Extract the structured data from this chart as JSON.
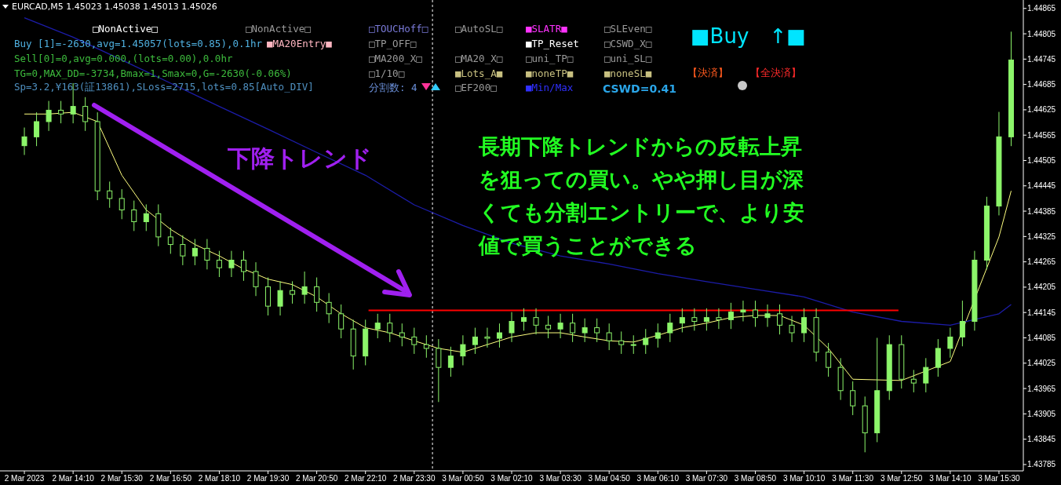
{
  "chart_data": {
    "type": "candlestick",
    "title": "EURCAD,M5  1.45023 1.45038 1.45013 1.45026",
    "color": "#8cf56a",
    "x": [
      "2023-03-02T12:50",
      "2023-03-02T13:10",
      "2023-03-02T13:30",
      "2023-03-02T13:50",
      "2023-03-02T14:10",
      "2023-03-02T14:30",
      "2023-03-02T14:50",
      "2023-03-02T15:10",
      "2023-03-02T15:30",
      "2023-03-02T15:50",
      "2023-03-02T16:10",
      "2023-03-02T16:30",
      "2023-03-02T16:50",
      "2023-03-02T17:10",
      "2023-03-02T17:30",
      "2023-03-02T17:50",
      "2023-03-02T18:10",
      "2023-03-02T18:30",
      "2023-03-02T18:50",
      "2023-03-02T19:10",
      "2023-03-02T19:30",
      "2023-03-02T19:50",
      "2023-03-02T20:10",
      "2023-03-02T20:30",
      "2023-03-02T20:50",
      "2023-03-02T21:10",
      "2023-03-02T21:30",
      "2023-03-02T21:50",
      "2023-03-02T22:10",
      "2023-03-02T22:30",
      "2023-03-02T22:50",
      "2023-03-02T23:10",
      "2023-03-02T23:30",
      "2023-03-02T23:50",
      "2023-03-03T00:10",
      "2023-03-03T00:30",
      "2023-03-03T00:50",
      "2023-03-03T01:10",
      "2023-03-03T01:30",
      "2023-03-03T01:50",
      "2023-03-03T02:10",
      "2023-03-03T02:30",
      "2023-03-03T02:50",
      "2023-03-03T03:10",
      "2023-03-03T03:30",
      "2023-03-03T03:50",
      "2023-03-03T04:10",
      "2023-03-03T04:30",
      "2023-03-03T04:50",
      "2023-03-03T05:10",
      "2023-03-03T05:30",
      "2023-03-03T05:50",
      "2023-03-03T06:10",
      "2023-03-03T06:30",
      "2023-03-03T06:50",
      "2023-03-03T07:10",
      "2023-03-03T07:30",
      "2023-03-03T07:50",
      "2023-03-03T08:10",
      "2023-03-03T08:30",
      "2023-03-03T08:50",
      "2023-03-03T09:10",
      "2023-03-03T09:30",
      "2023-03-03T09:50",
      "2023-03-03T10:10",
      "2023-03-03T10:30",
      "2023-03-03T10:50",
      "2023-03-03T11:10",
      "2023-03-03T11:30",
      "2023-03-03T11:50",
      "2023-03-03T12:10",
      "2023-03-03T12:30",
      "2023-03-03T12:50",
      "2023-03-03T13:10",
      "2023-03-03T13:30",
      "2023-03-03T13:50",
      "2023-03-03T14:10",
      "2023-03-03T14:30",
      "2023-03-03T14:50",
      "2023-03-03T15:10",
      "2023-03-03T15:30",
      "2023-03-03T15:50"
    ],
    "ohlc": [
      [
        1.4454,
        1.44583,
        1.44518,
        1.44561
      ],
      [
        1.44561,
        1.44619,
        1.44539,
        1.44597
      ],
      [
        1.44597,
        1.44646,
        1.44575,
        1.44624
      ],
      [
        1.44624,
        1.44646,
        1.44593,
        1.44615
      ],
      [
        1.44615,
        1.44688,
        1.44593,
        1.44633
      ],
      [
        1.44633,
        1.44655,
        1.44575,
        1.44597
      ],
      [
        1.44597,
        1.44619,
        1.44411,
        1.44433
      ],
      [
        1.44433,
        1.44455,
        1.44393,
        1.44415
      ],
      [
        1.44415,
        1.44437,
        1.44366,
        1.44388
      ],
      [
        1.44388,
        1.4441,
        1.44338,
        1.4436
      ],
      [
        1.4436,
        1.44401,
        1.44338,
        1.44379
      ],
      [
        1.44379,
        1.44401,
        1.44302,
        1.44324
      ],
      [
        1.44324,
        1.44346,
        1.44284,
        1.44306
      ],
      [
        1.44306,
        1.44328,
        1.44257,
        1.44279
      ],
      [
        1.44279,
        1.44319,
        1.44257,
        1.44297
      ],
      [
        1.44297,
        1.44319,
        1.44247,
        1.44269
      ],
      [
        1.44269,
        1.44291,
        1.44229,
        1.44251
      ],
      [
        1.44251,
        1.44291,
        1.44229,
        1.44269
      ],
      [
        1.44269,
        1.44291,
        1.4422,
        1.44242
      ],
      [
        1.44242,
        1.44264,
        1.44184,
        1.44206
      ],
      [
        1.44206,
        1.44228,
        1.44138,
        1.4416
      ],
      [
        1.4416,
        1.44219,
        1.44138,
        1.44197
      ],
      [
        1.44197,
        1.44219,
        1.44166,
        1.44188
      ],
      [
        1.44188,
        1.44242,
        1.44166,
        1.44206
      ],
      [
        1.44206,
        1.44228,
        1.44147,
        1.44169
      ],
      [
        1.44169,
        1.44191,
        1.4412,
        1.44142
      ],
      [
        1.44142,
        1.44164,
        1.44084,
        1.44106
      ],
      [
        1.44106,
        1.44128,
        1.4401,
        1.44042
      ],
      [
        1.44042,
        1.44128,
        1.4402,
        1.44106
      ],
      [
        1.44106,
        1.44142,
        1.44084,
        1.4412
      ],
      [
        1.4412,
        1.44142,
        1.44075,
        1.44097
      ],
      [
        1.44097,
        1.44119,
        1.44065,
        1.44087
      ],
      [
        1.44087,
        1.44109,
        1.44047,
        1.44069
      ],
      [
        1.44069,
        1.44091,
        1.44038,
        1.4406
      ],
      [
        1.4406,
        1.44082,
        1.43933,
        1.44015
      ],
      [
        1.44015,
        1.44064,
        1.43993,
        1.44042
      ],
      [
        1.44042,
        1.44091,
        1.4402,
        1.44069
      ],
      [
        1.44069,
        1.44109,
        1.44047,
        1.44087
      ],
      [
        1.44087,
        1.44109,
        1.44062,
        1.44084
      ],
      [
        1.44084,
        1.44119,
        1.44062,
        1.44097
      ],
      [
        1.44097,
        1.44146,
        1.44075,
        1.44124
      ],
      [
        1.44124,
        1.44155,
        1.44102,
        1.44133
      ],
      [
        1.44133,
        1.44155,
        1.44093,
        1.44115
      ],
      [
        1.44115,
        1.44137,
        1.44084,
        1.44106
      ],
      [
        1.44106,
        1.44142,
        1.44084,
        1.4412
      ],
      [
        1.4412,
        1.44142,
        1.44075,
        1.44097
      ],
      [
        1.44097,
        1.44131,
        1.44075,
        1.44109
      ],
      [
        1.44109,
        1.44131,
        1.44075,
        1.44097
      ],
      [
        1.44097,
        1.44119,
        1.44056,
        1.44078
      ],
      [
        1.44078,
        1.441,
        1.44047,
        1.44069
      ],
      [
        1.44069,
        1.44091,
        1.44047,
        1.44069
      ],
      [
        1.44069,
        1.44106,
        1.44047,
        1.44084
      ],
      [
        1.44084,
        1.44119,
        1.44062,
        1.44097
      ],
      [
        1.44097,
        1.44142,
        1.44075,
        1.4412
      ],
      [
        1.4412,
        1.44155,
        1.44098,
        1.44133
      ],
      [
        1.44133,
        1.44155,
        1.44102,
        1.44124
      ],
      [
        1.44124,
        1.44155,
        1.44102,
        1.44133
      ],
      [
        1.44133,
        1.44155,
        1.44106,
        1.44128
      ],
      [
        1.44128,
        1.44168,
        1.44106,
        1.44146
      ],
      [
        1.44146,
        1.44173,
        1.44124,
        1.44151
      ],
      [
        1.44151,
        1.44173,
        1.44111,
        1.44133
      ],
      [
        1.44133,
        1.44164,
        1.44111,
        1.44142
      ],
      [
        1.44142,
        1.44164,
        1.44093,
        1.44115
      ],
      [
        1.44115,
        1.44137,
        1.44075,
        1.44097
      ],
      [
        1.44097,
        1.44155,
        1.44075,
        1.44133
      ],
      [
        1.44133,
        1.44155,
        1.44029,
        1.44051
      ],
      [
        1.44051,
        1.44073,
        1.43993,
        1.44015
      ],
      [
        1.44015,
        1.44037,
        1.43938,
        1.4396
      ],
      [
        1.4396,
        1.43982,
        1.43902,
        1.43924
      ],
      [
        1.43924,
        1.43946,
        1.43814,
        1.4386
      ],
      [
        1.4386,
        1.44085,
        1.43838,
        1.4396
      ],
      [
        1.4396,
        1.44091,
        1.43938,
        1.44069
      ],
      [
        1.44069,
        1.44091,
        1.43965,
        1.43987
      ],
      [
        1.43987,
        1.44009,
        1.43956,
        1.43978
      ],
      [
        1.43978,
        1.44037,
        1.43956,
        1.44015
      ],
      [
        1.44015,
        1.44082,
        1.43993,
        1.4406
      ],
      [
        1.4406,
        1.44109,
        1.44038,
        1.44087
      ],
      [
        1.44087,
        1.44173,
        1.44065,
        1.44124
      ],
      [
        1.44124,
        1.44291,
        1.44102,
        1.44269
      ],
      [
        1.44269,
        1.44419,
        1.44247,
        1.44397
      ],
      [
        1.44397,
        1.4462,
        1.44375,
        1.44561
      ],
      [
        1.44561,
        1.4481,
        1.44539,
        1.44743
      ]
    ],
    "series": [
      {
        "type": "line",
        "color": "#ffff80",
        "x": [
          "2023-03-02T12:50",
          "2023-03-02T13:30",
          "2023-03-02T14:10",
          "2023-03-02T14:50",
          "2023-03-02T15:30",
          "2023-03-02T16:10",
          "2023-03-02T16:50",
          "2023-03-02T17:30",
          "2023-03-02T18:10",
          "2023-03-02T18:50",
          "2023-03-02T19:30",
          "2023-03-02T20:10",
          "2023-03-02T20:50",
          "2023-03-02T21:30",
          "2023-03-02T22:10",
          "2023-03-02T22:50",
          "2023-03-02T23:30",
          "2023-03-03T00:10",
          "2023-03-03T00:50",
          "2023-03-03T01:30",
          "2023-03-03T02:10",
          "2023-03-03T02:50",
          "2023-03-03T03:30",
          "2023-03-03T04:10",
          "2023-03-03T04:50",
          "2023-03-03T05:30",
          "2023-03-03T06:10",
          "2023-03-03T06:50",
          "2023-03-03T07:30",
          "2023-03-03T08:10",
          "2023-03-03T08:50",
          "2023-03-03T09:30",
          "2023-03-03T10:10",
          "2023-03-03T10:50",
          "2023-03-03T11:30",
          "2023-03-03T12:50",
          "2023-03-03T14:10",
          "2023-03-03T15:30",
          "2023-03-03T15:50"
        ],
        "values": [
          1.44615,
          1.44615,
          1.44619,
          1.44597,
          1.4447,
          1.44388,
          1.44342,
          1.44306,
          1.44279,
          1.44248,
          1.44224,
          1.44211,
          1.44182,
          1.44142,
          1.44109,
          1.44097,
          1.44078,
          1.4406,
          1.44051,
          1.44069,
          1.44087,
          1.44097,
          1.44097,
          1.44087,
          1.44078,
          1.44075,
          1.44091,
          1.44109,
          1.4412,
          1.44133,
          1.44138,
          1.44138,
          1.44115,
          1.4406,
          1.43987,
          1.43984,
          1.44029,
          1.44324,
          1.44433
        ]
      },
      {
        "type": "line",
        "color": "#1c1ca8",
        "x": [
          "2023-03-02T12:50",
          "2023-03-02T14:10",
          "2023-03-02T15:30",
          "2023-03-02T16:50",
          "2023-03-02T18:10",
          "2023-03-02T19:30",
          "2023-03-02T20:50",
          "2023-03-02T22:10",
          "2023-03-02T23:30",
          "2023-03-03T00:50",
          "2023-03-03T02:10",
          "2023-03-03T03:30",
          "2023-03-03T04:50",
          "2023-03-03T06:10",
          "2023-03-03T07:30",
          "2023-03-03T08:50",
          "2023-03-03T10:10",
          "2023-03-03T11:30",
          "2023-03-03T12:50",
          "2023-03-03T14:10",
          "2023-03-03T15:30",
          "2023-03-03T15:50"
        ],
        "values": [
          1.44843,
          1.44797,
          1.44743,
          1.44688,
          1.44633,
          1.44579,
          1.44524,
          1.4447,
          1.444,
          1.44351,
          1.44309,
          1.44279,
          1.4426,
          1.44237,
          1.44218,
          1.442,
          1.44182,
          1.44146,
          1.44124,
          1.44115,
          1.44142,
          1.44164
        ]
      },
      {
        "type": "line",
        "color": "#ff0000",
        "x": [
          "2023-03-02T22:15",
          "2023-03-03T12:45"
        ],
        "values": [
          1.4415,
          1.4415
        ]
      }
    ],
    "ref_lines": [
      {
        "axis": "x",
        "value": "2023-03-03T00:00",
        "color": "#ffffff",
        "line_style": "dashed"
      }
    ],
    "xlim": [
      "2023-03-02T12:10",
      "2023-03-03T16:10"
    ],
    "xticks": [
      {
        "value": "2023-03-02T12:50",
        "label": "2 Mar 2023"
      },
      {
        "value": "2023-03-02T14:10",
        "label": "2 Mar 14:10"
      },
      {
        "value": "2023-03-02T15:30",
        "label": "2 Mar 15:30"
      },
      {
        "value": "2023-03-02T16:50",
        "label": "2 Mar 16:50"
      },
      {
        "value": "2023-03-02T18:10",
        "label": "2 Mar 18:10"
      },
      {
        "value": "2023-03-02T19:30",
        "label": "2 Mar 19:30"
      },
      {
        "value": "2023-03-02T20:50",
        "label": "2 Mar 20:50"
      },
      {
        "value": "2023-03-02T22:10",
        "label": "2 Mar 22:10"
      },
      {
        "value": "2023-03-02T23:30",
        "label": "2 Mar 23:30"
      },
      {
        "value": "2023-03-03T00:50",
        "label": "3 Mar 00:50"
      },
      {
        "value": "2023-03-03T02:10",
        "label": "3 Mar 02:10"
      },
      {
        "value": "2023-03-03T03:30",
        "label": "3 Mar 03:30"
      },
      {
        "value": "2023-03-03T04:50",
        "label": "3 Mar 04:50"
      },
      {
        "value": "2023-03-03T06:10",
        "label": "3 Mar 06:10"
      },
      {
        "value": "2023-03-03T07:30",
        "label": "3 Mar 07:30"
      },
      {
        "value": "2023-03-03T08:50",
        "label": "3 Mar 08:50"
      },
      {
        "value": "2023-03-03T10:10",
        "label": "3 Mar 10:10"
      },
      {
        "value": "2023-03-03T11:30",
        "label": "3 Mar 11:30"
      },
      {
        "value": "2023-03-03T12:50",
        "label": "3 Mar 12:50"
      },
      {
        "value": "2023-03-03T14:10",
        "label": "3 Mar 14:10"
      },
      {
        "value": "2023-03-03T15:30",
        "label": "3 Mar 15:30"
      }
    ],
    "ylim": [
      1.4377,
      1.44885
    ],
    "yticks": [
      1.44865,
      1.44805,
      1.44745,
      1.44685,
      1.44625,
      1.44565,
      1.44505,
      1.44445,
      1.44385,
      1.44325,
      1.44265,
      1.44205,
      1.44145,
      1.44085,
      1.44025,
      1.43965,
      1.43905,
      1.43845,
      1.43785
    ],
    "annotations": [
      "□NonActive□",
      "□NonActive□",
      "Buy [1]=-2630,avg=1.45057(lots=0.85),0.1hr",
      "■MA20Entry■",
      "Sell[0]=0,avg=0.000,(lots=0.00),0.0hr",
      "TG=0,MAX_DD=-3734,Bmax=1,Smax=0,G=-2630(-0.06%)",
      "Sp=3.2,¥163(証13861),SLoss=2715,lots=0.85[Auto_DIV]",
      "□TOUCHoff□",
      "□TP_OFF□",
      "□MA200_X□",
      "□1/10□",
      "分割数: 4",
      "□AutoSL□",
      "□MA20_X□",
      "■Lots_A■",
      "□EF200□",
      "■SLATR■",
      "■TP_Reset",
      "□uni_TP□",
      "■noneTP■",
      "■Min/Max",
      "□SLEven□",
      "□CSWD_X□",
      "□uni_SL□",
      "■noneSL■",
      "CSWD=0.41",
      "■Buy ↑■",
      "【決済】",
      "【全決済】",
      "下降トレンド",
      "長期下降トレンドからの反転上昇を狙っての買い。やや押し目が深くても分割エントリーで、より安値で買うことができる"
    ]
  }
}
